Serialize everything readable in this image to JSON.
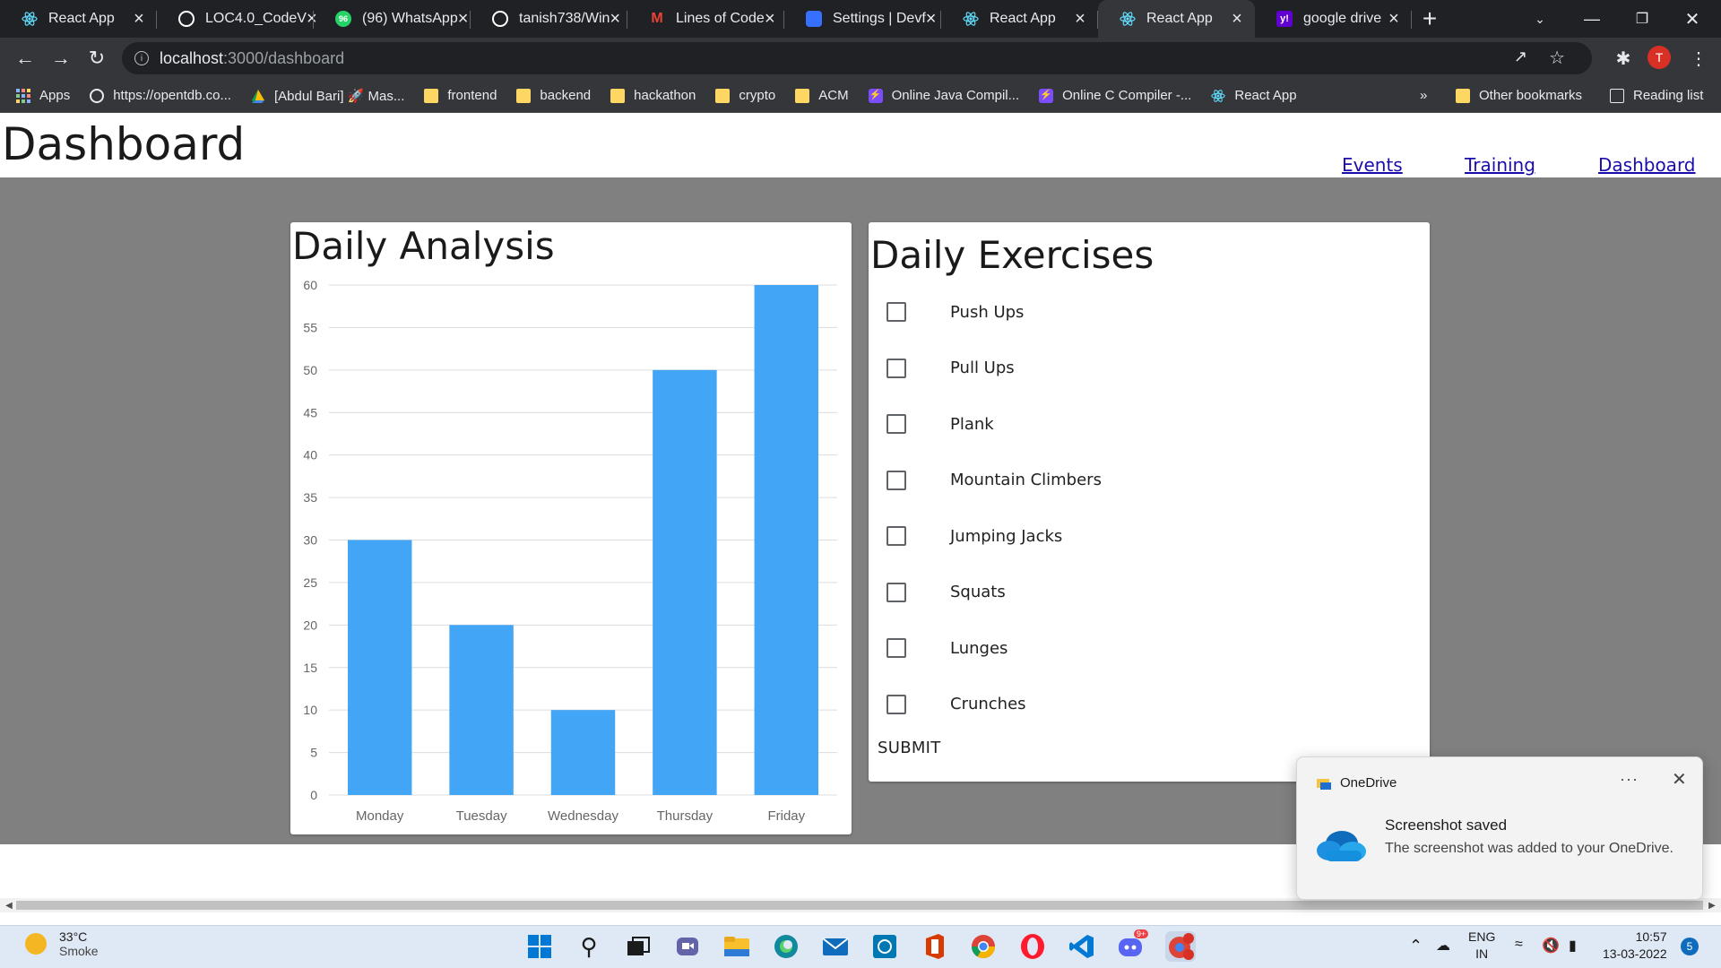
{
  "browser": {
    "tabs": [
      {
        "title": "React App",
        "icon": "react-icon",
        "color": "#61dafb",
        "active": false
      },
      {
        "title": "LOC4.0_CodeV",
        "icon": "github-icon",
        "color": "#ffffff",
        "active": false
      },
      {
        "title": "(96) WhatsApp",
        "icon": "whatsapp-icon",
        "color": "#25d366",
        "active": false,
        "badge": "96"
      },
      {
        "title": "tanish738/Win",
        "icon": "github-icon",
        "color": "#ffffff",
        "active": false
      },
      {
        "title": "Lines of Code",
        "icon": "gmail-icon",
        "color": "#ea4335",
        "active": false
      },
      {
        "title": "Settings | Devf",
        "icon": "devfolio-icon",
        "color": "#3770ff",
        "active": false
      },
      {
        "title": "React App",
        "icon": "react-icon",
        "color": "#61dafb",
        "active": false
      },
      {
        "title": "React App",
        "icon": "react-icon",
        "color": "#61dafb",
        "active": true
      },
      {
        "title": "google drive",
        "icon": "yahoo-icon",
        "color": "#6001d2",
        "active": false
      }
    ],
    "address": {
      "host": "localhost",
      "path": ":3000/dashboard"
    },
    "profile_initial": "T",
    "bookmarks": [
      {
        "label": "Apps",
        "icon": "apps-grid-icon"
      },
      {
        "label": "https://opentdb.co...",
        "icon": "globe-icon"
      },
      {
        "label": "[Abdul Bari] 🚀 Mas...",
        "icon": "drive-icon"
      },
      {
        "label": "frontend",
        "icon": "folder-icon"
      },
      {
        "label": "backend",
        "icon": "folder-icon"
      },
      {
        "label": "hackathon",
        "icon": "folder-icon"
      },
      {
        "label": "crypto",
        "icon": "folder-icon"
      },
      {
        "label": "ACM",
        "icon": "folder-icon"
      },
      {
        "label": "Online Java Compil...",
        "icon": "bolt-icon"
      },
      {
        "label": "Online C Compiler -...",
        "icon": "bolt-icon"
      },
      {
        "label": "React App",
        "icon": "react-icon"
      }
    ],
    "bookmarks_overflow": "»",
    "other_bookmarks": "Other bookmarks",
    "reading_list": "Reading list"
  },
  "page": {
    "title": "Dashboard",
    "nav": [
      {
        "label": "Events"
      },
      {
        "label": "Training"
      },
      {
        "label": "Dashboard"
      }
    ],
    "analysis_title": "Daily Analysis",
    "exercises_title": "Daily Exercises",
    "exercises": [
      {
        "label": "Push Ups",
        "checked": false
      },
      {
        "label": "Pull Ups",
        "checked": false
      },
      {
        "label": "Plank",
        "checked": false
      },
      {
        "label": "Mountain Climbers",
        "checked": false
      },
      {
        "label": "Jumping Jacks",
        "checked": false
      },
      {
        "label": "Squats",
        "checked": false
      },
      {
        "label": "Lunges",
        "checked": false
      },
      {
        "label": "Crunches",
        "checked": false
      }
    ],
    "submit_label": "SUBMIT"
  },
  "chart_data": {
    "type": "bar",
    "categories": [
      "Monday",
      "Tuesday",
      "Wednesday",
      "Thursday",
      "Friday"
    ],
    "values": [
      30,
      20,
      10,
      50,
      60
    ],
    "title": "Daily Analysis",
    "xlabel": "",
    "ylabel": "",
    "ylim": [
      0,
      60
    ],
    "yticks": [
      0,
      5,
      10,
      15,
      20,
      25,
      30,
      35,
      40,
      45,
      50,
      55,
      60
    ],
    "grid": true,
    "bar_color": "#42a5f5"
  },
  "toast": {
    "app": "OneDrive",
    "more": "···",
    "title": "Screenshot saved",
    "body": "The screenshot was added to your OneDrive."
  },
  "taskbar": {
    "weather_temp": "33°C",
    "weather_cond": "Smoke",
    "lang_top": "ENG",
    "lang_bottom": "IN",
    "time": "10:57",
    "date": "13-03-2022",
    "notification_count": "5",
    "discord_badge": "9+"
  }
}
